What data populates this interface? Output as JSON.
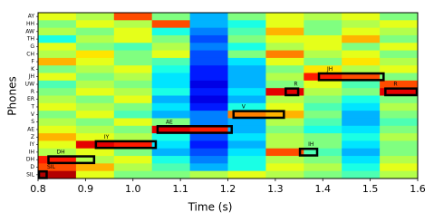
{
  "chart_data": {
    "type": "heatmap",
    "xlabel": "Time (s)",
    "ylabel": "Phones",
    "categories": [
      "AY",
      "HH",
      "AW",
      "TH",
      "G",
      "CH",
      "F",
      "K",
      "JH",
      "UW",
      "R",
      "ER",
      "T",
      "V",
      "S",
      "AE",
      "Z",
      "IY",
      "IH",
      "DH",
      "D",
      "SIL"
    ],
    "xbins": [
      0.8,
      0.88,
      0.96,
      1.04,
      1.12,
      1.2,
      1.28,
      1.36,
      1.44,
      1.52,
      1.6
    ],
    "colormap": "jet",
    "zlim": [
      0,
      1
    ],
    "z": [
      [
        0.6,
        0.55,
        0.8,
        0.5,
        0.3,
        0.5,
        0.6,
        0.55,
        0.6,
        0.5
      ],
      [
        0.5,
        0.6,
        0.55,
        0.8,
        0.3,
        0.4,
        0.6,
        0.5,
        0.55,
        0.6
      ],
      [
        0.55,
        0.5,
        0.6,
        0.4,
        0.25,
        0.45,
        0.7,
        0.5,
        0.6,
        0.55
      ],
      [
        0.4,
        0.55,
        0.6,
        0.5,
        0.2,
        0.5,
        0.6,
        0.6,
        0.7,
        0.5
      ],
      [
        0.6,
        0.5,
        0.45,
        0.55,
        0.25,
        0.4,
        0.55,
        0.6,
        0.5,
        0.6
      ],
      [
        0.55,
        0.65,
        0.5,
        0.6,
        0.2,
        0.5,
        0.75,
        0.55,
        0.6,
        0.5
      ],
      [
        0.7,
        0.6,
        0.5,
        0.45,
        0.2,
        0.35,
        0.6,
        0.5,
        0.65,
        0.55
      ],
      [
        0.5,
        0.55,
        0.6,
        0.4,
        0.15,
        0.3,
        0.5,
        0.65,
        0.55,
        0.6
      ],
      [
        0.6,
        0.5,
        0.55,
        0.35,
        0.15,
        0.3,
        0.55,
        0.85,
        0.8,
        0.5
      ],
      [
        0.45,
        0.55,
        0.5,
        0.35,
        0.1,
        0.3,
        0.5,
        0.6,
        0.45,
        0.8
      ],
      [
        0.5,
        0.6,
        0.55,
        0.4,
        0.15,
        0.35,
        0.9,
        0.55,
        0.5,
        0.9
      ],
      [
        0.55,
        0.5,
        0.6,
        0.3,
        0.1,
        0.3,
        0.55,
        0.5,
        0.4,
        0.5
      ],
      [
        0.6,
        0.55,
        0.5,
        0.35,
        0.15,
        0.4,
        0.6,
        0.45,
        0.35,
        0.55
      ],
      [
        0.5,
        0.6,
        0.45,
        0.3,
        0.25,
        0.75,
        0.7,
        0.5,
        0.3,
        0.5
      ],
      [
        0.55,
        0.5,
        0.6,
        0.5,
        0.25,
        0.3,
        0.55,
        0.45,
        0.3,
        0.45
      ],
      [
        0.6,
        0.55,
        0.5,
        0.9,
        0.85,
        0.3,
        0.5,
        0.4,
        0.35,
        0.5
      ],
      [
        0.7,
        0.6,
        0.55,
        0.4,
        0.2,
        0.35,
        0.55,
        0.5,
        0.4,
        0.55
      ],
      [
        0.6,
        0.9,
        0.85,
        0.35,
        0.15,
        0.3,
        0.55,
        0.5,
        0.35,
        0.5
      ],
      [
        0.55,
        0.6,
        0.5,
        0.3,
        0.2,
        0.35,
        0.8,
        0.45,
        0.3,
        0.5
      ],
      [
        0.85,
        0.55,
        0.6,
        0.4,
        0.25,
        0.4,
        0.55,
        0.5,
        0.35,
        0.55
      ],
      [
        0.8,
        0.7,
        0.55,
        0.45,
        0.3,
        0.4,
        0.6,
        0.55,
        0.4,
        0.6
      ],
      [
        0.95,
        0.6,
        0.5,
        0.5,
        0.55,
        0.6,
        0.55,
        0.5,
        0.45,
        0.55
      ]
    ],
    "segments": [
      {
        "label": "SIL",
        "start": 0.8,
        "end": 0.82
      },
      {
        "label": "DH",
        "start": 0.82,
        "end": 0.92
      },
      {
        "label": "IY",
        "start": 0.92,
        "end": 1.05
      },
      {
        "label": "AE",
        "start": 1.05,
        "end": 1.21
      },
      {
        "label": "V",
        "start": 1.21,
        "end": 1.32
      },
      {
        "label": "R",
        "start": 1.32,
        "end": 1.35
      },
      {
        "label": "IH",
        "start": 1.35,
        "end": 1.39
      },
      {
        "label": "JH",
        "start": 1.39,
        "end": 1.53
      },
      {
        "label": "R",
        "start": 1.53,
        "end": 1.6
      }
    ],
    "xlim": [
      0.8,
      1.6
    ],
    "xticks": [
      0.8,
      0.9,
      {
        "value": 1,
        "label": "1.0"
      },
      1.1,
      1.2,
      1.3,
      1.4,
      1.5,
      1.6
    ]
  }
}
